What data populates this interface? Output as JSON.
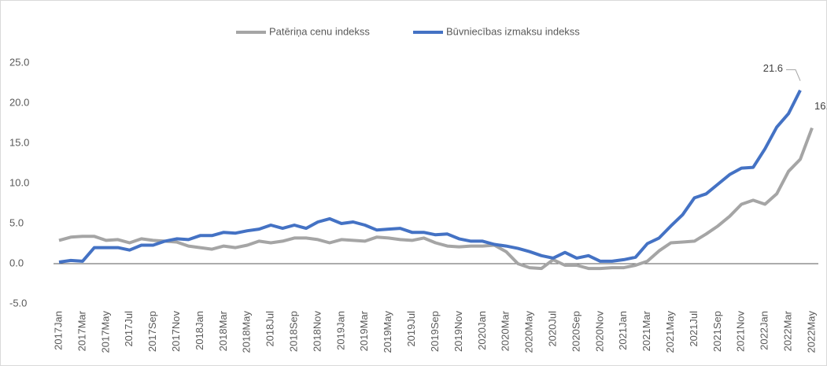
{
  "chart_data": {
    "type": "line",
    "categories": [
      "2017Jan",
      null,
      "2017Mar",
      null,
      "2017May",
      null,
      "2017Jul",
      null,
      "2017Sep",
      null,
      "2017Nov",
      null,
      "2018Jan",
      null,
      "2018Mar",
      null,
      "2018May",
      null,
      "2018Jul",
      null,
      "2018Sep",
      null,
      "2018Nov",
      null,
      "2019Jan",
      null,
      "2019Mar",
      null,
      "2019May",
      null,
      "2019Jul",
      null,
      "2019Sep",
      null,
      "2019Nov",
      null,
      "2020Jan",
      null,
      "2020Mar",
      null,
      "2020May",
      null,
      "2020Jul",
      null,
      "2020Sep",
      null,
      "2020Nov",
      null,
      "2021Jan",
      null,
      "2021Mar",
      null,
      "2021May",
      null,
      "2021Jul",
      null,
      "2021Sep",
      null,
      "2021Nov",
      null,
      "2022Jan",
      null,
      "2022Mar",
      null,
      "2022May"
    ],
    "series": [
      {
        "name": "Patēriņa cenu indekss",
        "color": "#a5a5a5",
        "values": [
          2.9,
          3.3,
          3.4,
          3.4,
          2.9,
          3.0,
          2.6,
          3.1,
          2.9,
          2.8,
          2.7,
          2.2,
          2.0,
          1.8,
          2.2,
          2.0,
          2.3,
          2.8,
          2.6,
          2.8,
          3.2,
          3.2,
          3.0,
          2.6,
          3.0,
          2.9,
          2.8,
          3.3,
          3.2,
          3.0,
          2.9,
          3.2,
          2.6,
          2.2,
          2.1,
          2.2,
          2.2,
          2.3,
          1.5,
          0.0,
          -0.5,
          -0.6,
          0.5,
          -0.2,
          -0.2,
          -0.6,
          -0.6,
          -0.5,
          -0.5,
          -0.2,
          0.3,
          1.6,
          2.6,
          2.7,
          2.8,
          3.7,
          4.7,
          5.9,
          7.4,
          7.9,
          7.4,
          8.7,
          11.5,
          13.0,
          16.9
        ]
      },
      {
        "name": "Būvniecības izmaksu indekss",
        "color": "#4472c4",
        "values": [
          0.2,
          0.4,
          0.3,
          2.0,
          2.0,
          2.0,
          1.7,
          2.3,
          2.3,
          2.8,
          3.1,
          3.0,
          3.5,
          3.5,
          3.9,
          3.8,
          4.1,
          4.3,
          4.8,
          4.4,
          4.8,
          4.4,
          5.2,
          5.6,
          5.0,
          5.2,
          4.8,
          4.2,
          4.3,
          4.4,
          3.9,
          3.9,
          3.6,
          3.7,
          3.1,
          2.8,
          2.8,
          2.4,
          2.2,
          1.9,
          1.5,
          1.0,
          0.7,
          1.4,
          0.7,
          1.0,
          0.3,
          0.3,
          0.5,
          0.8,
          2.5,
          3.2,
          4.7,
          6.1,
          8.2,
          8.7,
          9.9,
          11.1,
          11.9,
          12.0,
          14.3,
          17.0,
          18.7,
          21.6,
          null
        ]
      }
    ],
    "ylim": [
      -5,
      25
    ],
    "yticks": [
      {
        "value": -5,
        "label": "-5.0"
      },
      {
        "value": 0,
        "label": "0.0"
      },
      {
        "value": 5,
        "label": "5.0"
      },
      {
        "value": 10,
        "label": "10.0"
      },
      {
        "value": 15,
        "label": "15.0"
      },
      {
        "value": 20,
        "label": "20.0"
      },
      {
        "value": 25,
        "label": "25.0"
      }
    ],
    "legend": "top",
    "grid": false
  }
}
